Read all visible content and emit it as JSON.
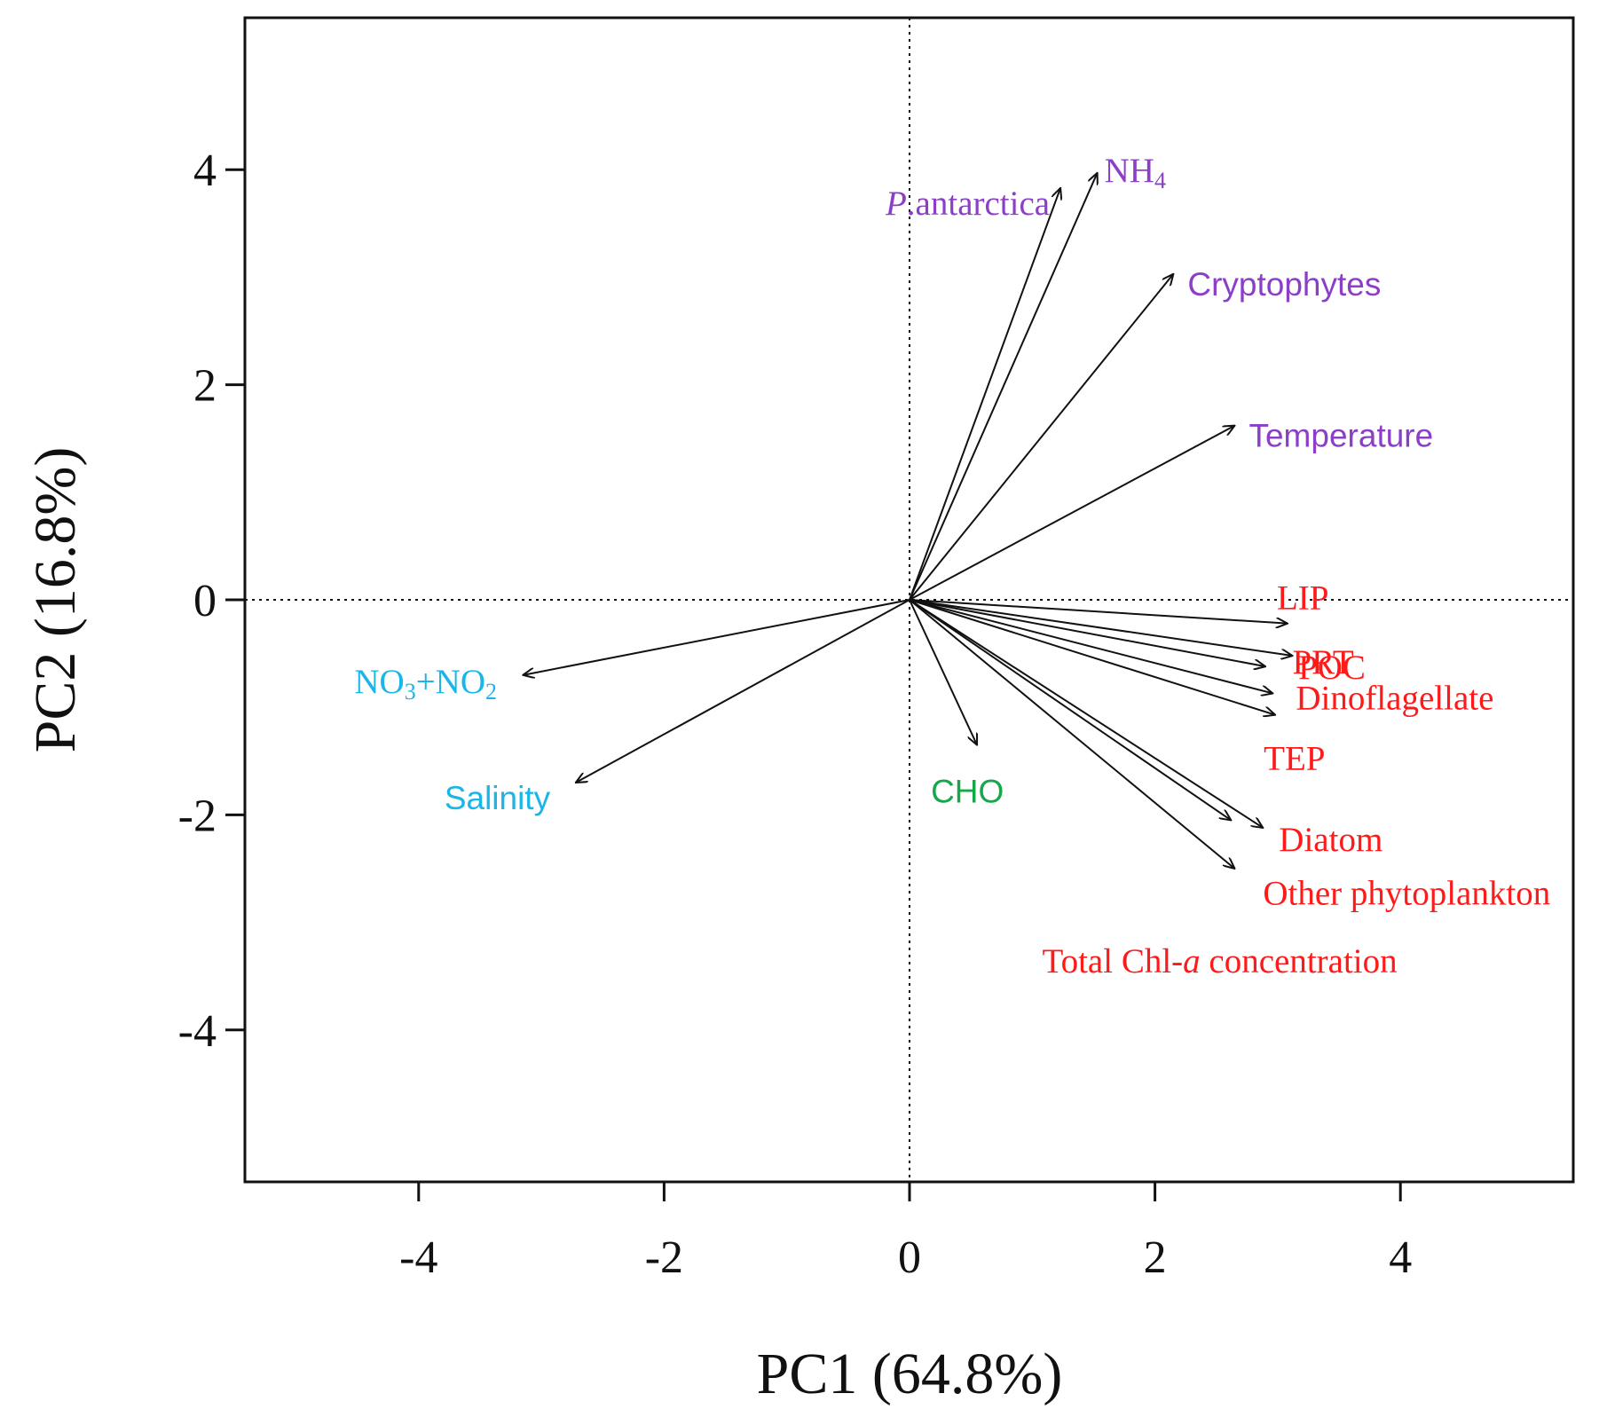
{
  "chart_data": {
    "type": "biplot",
    "xlabel": "PC1 (64.8%)",
    "ylabel": "PC2 (16.8%)",
    "xlim": [
      -5.4,
      5.4
    ],
    "ylim": [
      -5.4,
      5.4
    ],
    "xticks": [
      -4,
      -2,
      0,
      2,
      4
    ],
    "yticks": [
      -4,
      -2,
      0,
      2,
      4
    ],
    "reference_lines": "dotted lines at x=0 and y=0",
    "colors": {
      "purple": "#8b3fc8",
      "red": "#ff1a1a",
      "cyan": "#1ab6e8",
      "green": "#15a84a",
      "arrow": "#111111"
    },
    "vectors": [
      {
        "name": "P.antarctica",
        "x": 1.23,
        "y": 3.83,
        "color": "purple",
        "parts": [
          {
            "t": "P",
            "i": true
          },
          {
            "t": ".antarctica"
          }
        ]
      },
      {
        "name": "NH4",
        "x": 1.53,
        "y": 3.97,
        "color": "purple",
        "parts": [
          {
            "t": "NH"
          },
          {
            "t": "4",
            "sub": true
          }
        ]
      },
      {
        "name": "Cryptophytes",
        "x": 2.15,
        "y": 3.03,
        "color": "purple",
        "sans": true,
        "parts": [
          {
            "t": "Cryptophytes"
          }
        ]
      },
      {
        "name": "Temperature",
        "x": 2.65,
        "y": 1.62,
        "color": "purple",
        "sans": true,
        "parts": [
          {
            "t": "Temperature"
          }
        ]
      },
      {
        "name": "LIP",
        "x": 3.08,
        "y": -0.22,
        "color": "red",
        "parts": [
          {
            "t": "LIP"
          }
        ]
      },
      {
        "name": "PRT",
        "x": 3.12,
        "y": -0.52,
        "color": "red",
        "parts": [
          {
            "t": "PRT"
          }
        ]
      },
      {
        "name": "POC",
        "x": 2.9,
        "y": -0.62,
        "color": "red",
        "parts": [
          {
            "t": "POC"
          }
        ]
      },
      {
        "name": "Dinoflagellate",
        "x": 2.96,
        "y": -0.87,
        "color": "red",
        "parts": [
          {
            "t": "Dinoflagellate"
          }
        ]
      },
      {
        "name": "TEP",
        "x": 2.98,
        "y": -1.07,
        "color": "red",
        "parts": [
          {
            "t": "TEP"
          }
        ]
      },
      {
        "name": "Diatom",
        "x": 2.88,
        "y": -2.12,
        "color": "red",
        "parts": [
          {
            "t": "Diatom"
          }
        ]
      },
      {
        "name": "Other phytoplankton",
        "x": 2.62,
        "y": -2.05,
        "color": "red",
        "parts": [
          {
            "t": "Other phytoplankton"
          }
        ]
      },
      {
        "name": "Total Chl-a concentration",
        "x": 2.65,
        "y": -2.5,
        "color": "red",
        "parts": [
          {
            "t": "Total Chl-"
          },
          {
            "t": "a",
            "i": true
          },
          {
            "t": " concentration"
          }
        ]
      },
      {
        "name": "NO3+NO2",
        "x": -3.15,
        "y": -0.7,
        "color": "cyan",
        "parts": [
          {
            "t": "NO"
          },
          {
            "t": "3",
            "sub": true
          },
          {
            "t": "+NO"
          },
          {
            "t": "2",
            "sub": true
          }
        ]
      },
      {
        "name": "Salinity",
        "x": -2.72,
        "y": -1.7,
        "color": "cyan",
        "sans": true,
        "parts": [
          {
            "t": "Salinity"
          }
        ]
      },
      {
        "name": "CHO",
        "x": 0.55,
        "y": -1.35,
        "color": "green",
        "sans": true,
        "parts": [
          {
            "t": "CHO"
          }
        ]
      }
    ]
  }
}
